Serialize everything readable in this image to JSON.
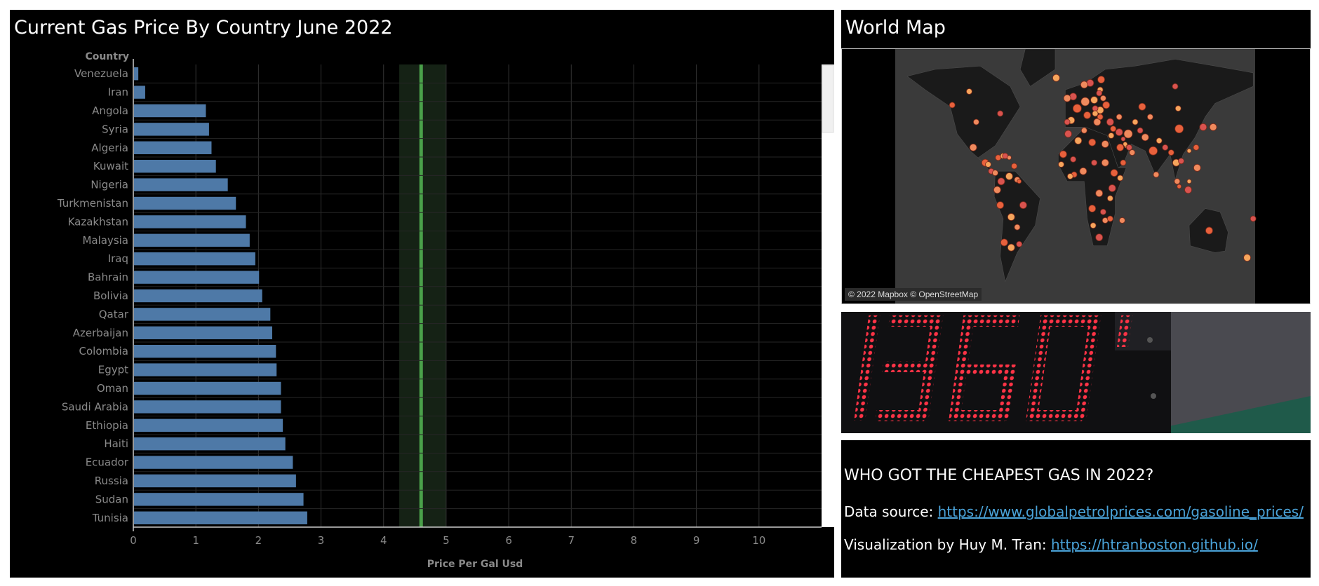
{
  "chart_panel": {
    "title": "Current Gas Price By Country June 2022"
  },
  "map_panel": {
    "title": "World Map",
    "attribution": "© 2022 Mapbox © OpenStreetMap"
  },
  "info_panel": {
    "heading": "WHO GOT THE CHEAPEST GAS IN 2022?",
    "source_label": "Data source:",
    "source_link": "https://www.globalpetrolprices.com/gasoline_prices/",
    "credit_label": "Visualization by Huy M. Tran:",
    "credit_link": "https://htranboston.github.io/"
  },
  "chart_data": {
    "type": "bar",
    "orientation": "horizontal",
    "title": "Current Gas Price By Country June 2022",
    "ylabel": "Country",
    "xlabel": "Price Per Gal Usd",
    "xlim": [
      0,
      11
    ],
    "xticks": [
      0,
      1,
      2,
      3,
      4,
      5,
      6,
      7,
      8,
      9,
      10
    ],
    "grid": true,
    "bar_color": "#4e79a7",
    "reference_line": {
      "value": 4.6,
      "band": [
        4.25,
        5.0
      ],
      "color": "#4aa04a"
    },
    "categories": [
      "Venezuela",
      "Iran",
      "Angola",
      "Syria",
      "Algeria",
      "Kuwait",
      "Nigeria",
      "Turkmenistan",
      "Kazakhstan",
      "Malaysia",
      "Iraq",
      "Bahrain",
      "Bolivia",
      "Qatar",
      "Azerbaijan",
      "Colombia",
      "Egypt",
      "Oman",
      "Saudi Arabia",
      "Ethiopia",
      "Haiti",
      "Ecuador",
      "Russia",
      "Sudan",
      "Tunisia"
    ],
    "values": [
      0.08,
      0.19,
      1.16,
      1.21,
      1.25,
      1.32,
      1.51,
      1.64,
      1.8,
      1.86,
      1.95,
      2.01,
      2.06,
      2.19,
      2.22,
      2.28,
      2.29,
      2.36,
      2.36,
      2.39,
      2.43,
      2.55,
      2.6,
      2.72,
      2.78
    ]
  },
  "map_points": [
    {
      "lon": -99,
      "lat": 39,
      "r": 4
    },
    {
      "lon": -123,
      "lat": 49,
      "r": 4
    },
    {
      "lon": -106,
      "lat": 57,
      "r": 4
    },
    {
      "lon": -75,
      "lat": 44,
      "r": 4
    },
    {
      "lon": -102,
      "lat": 24,
      "r": 5
    },
    {
      "lon": -90,
      "lat": 15,
      "r": 5
    },
    {
      "lon": -87,
      "lat": 14,
      "r": 4
    },
    {
      "lon": -84,
      "lat": 10,
      "r": 4
    },
    {
      "lon": -80,
      "lat": 9,
      "r": 4
    },
    {
      "lon": -77,
      "lat": 18,
      "r": 4
    },
    {
      "lon": -72,
      "lat": 19,
      "r": 4
    },
    {
      "lon": -70,
      "lat": 19,
      "r": 4
    },
    {
      "lon": -66,
      "lat": 18,
      "r": 3
    },
    {
      "lon": -61,
      "lat": 13,
      "r": 4
    },
    {
      "lon": -66,
      "lat": 7,
      "r": 5
    },
    {
      "lon": -74,
      "lat": 4,
      "r": 5
    },
    {
      "lon": -78,
      "lat": -1,
      "r": 5
    },
    {
      "lon": -75,
      "lat": -10,
      "r": 5
    },
    {
      "lon": -64,
      "lat": -17,
      "r": 5
    },
    {
      "lon": -52,
      "lat": -10,
      "r": 5
    },
    {
      "lon": -58,
      "lat": -23,
      "r": 4
    },
    {
      "lon": -71,
      "lat": -32,
      "r": 5
    },
    {
      "lon": -64,
      "lat": -35,
      "r": 5
    },
    {
      "lon": -56,
      "lat": -33,
      "r": 4
    },
    {
      "lon": -58,
      "lat": 5,
      "r": 4
    },
    {
      "lon": -56,
      "lat": 4,
      "r": 3
    },
    {
      "lon": -19,
      "lat": 65,
      "r": 5
    },
    {
      "lon": -2,
      "lat": 54,
      "r": 5
    },
    {
      "lon": -8,
      "lat": 53,
      "r": 5
    },
    {
      "lon": 2,
      "lat": 47,
      "r": 6
    },
    {
      "lon": -4,
      "lat": 40,
      "r": 5
    },
    {
      "lon": -8,
      "lat": 39,
      "r": 4
    },
    {
      "lon": 10,
      "lat": 51,
      "r": 6
    },
    {
      "lon": 12,
      "lat": 43,
      "r": 5
    },
    {
      "lon": 19,
      "lat": 52,
      "r": 5
    },
    {
      "lon": 15,
      "lat": 62,
      "r": 5
    },
    {
      "lon": 9,
      "lat": 61,
      "r": 5
    },
    {
      "lon": 26,
      "lat": 64,
      "r": 5
    },
    {
      "lon": 25,
      "lat": 58,
      "r": 4
    },
    {
      "lon": 24,
      "lat": 56,
      "r": 4
    },
    {
      "lon": 28,
      "lat": 53,
      "r": 4
    },
    {
      "lon": 31,
      "lat": 49,
      "r": 5
    },
    {
      "lon": 25,
      "lat": 46,
      "r": 5
    },
    {
      "lon": 20,
      "lat": 47,
      "r": 4
    },
    {
      "lon": 22,
      "lat": 39,
      "r": 5
    },
    {
      "lon": 25,
      "lat": 42,
      "r": 4
    },
    {
      "lon": 20,
      "lat": 44,
      "r": 4
    },
    {
      "lon": 35,
      "lat": 39,
      "r": 5
    },
    {
      "lon": 44,
      "lat": 42,
      "r": 4
    },
    {
      "lon": 38,
      "lat": 35,
      "r": 4
    },
    {
      "lon": 36,
      "lat": 31,
      "r": 4
    },
    {
      "lon": 44,
      "lat": 33,
      "r": 5
    },
    {
      "lon": 53,
      "lat": 32,
      "r": 6
    },
    {
      "lon": 45,
      "lat": 24,
      "r": 5
    },
    {
      "lon": 51,
      "lat": 25,
      "r": 3
    },
    {
      "lon": 54,
      "lat": 24,
      "r": 4
    },
    {
      "lon": 57,
      "lat": 21,
      "r": 4
    },
    {
      "lon": 48,
      "lat": 15,
      "r": 4
    },
    {
      "lon": 50,
      "lat": 26,
      "r": 3
    },
    {
      "lon": 48,
      "lat": 29,
      "r": 3
    },
    {
      "lon": 30,
      "lat": 26,
      "r": 5
    },
    {
      "lon": 17,
      "lat": 27,
      "r": 5
    },
    {
      "lon": 3,
      "lat": 28,
      "r": 5
    },
    {
      "lon": -7,
      "lat": 32,
      "r": 5
    },
    {
      "lon": 9,
      "lat": 34,
      "r": 4
    },
    {
      "lon": -12,
      "lat": 20,
      "r": 5
    },
    {
      "lon": -14,
      "lat": 14,
      "r": 4
    },
    {
      "lon": -2,
      "lat": 17,
      "r": 4
    },
    {
      "lon": 8,
      "lat": 10,
      "r": 5
    },
    {
      "lon": -1,
      "lat": 8,
      "r": 4
    },
    {
      "lon": -5,
      "lat": 7,
      "r": 4
    },
    {
      "lon": 19,
      "lat": 15,
      "r": 4
    },
    {
      "lon": 30,
      "lat": 15,
      "r": 5
    },
    {
      "lon": 39,
      "lat": 9,
      "r": 5
    },
    {
      "lon": 45,
      "lat": 6,
      "r": 4
    },
    {
      "lon": 37,
      "lat": 0,
      "r": 5
    },
    {
      "lon": 24,
      "lat": -3,
      "r": 5
    },
    {
      "lon": 17,
      "lat": -12,
      "r": 5
    },
    {
      "lon": 35,
      "lat": -6,
      "r": 4
    },
    {
      "lon": 28,
      "lat": -14,
      "r": 4
    },
    {
      "lon": 30,
      "lat": -19,
      "r": 4
    },
    {
      "lon": 35,
      "lat": -18,
      "r": 4
    },
    {
      "lon": 18,
      "lat": -22,
      "r": 4
    },
    {
      "lon": 24,
      "lat": -29,
      "r": 5
    },
    {
      "lon": 47,
      "lat": -19,
      "r": 4
    },
    {
      "lon": 67,
      "lat": 48,
      "r": 5
    },
    {
      "lon": 60,
      "lat": 39,
      "r": 4
    },
    {
      "lon": 65,
      "lat": 34,
      "r": 4
    },
    {
      "lon": 70,
      "lat": 30,
      "r": 5
    },
    {
      "lon": 78,
      "lat": 22,
      "r": 6
    },
    {
      "lon": 84,
      "lat": 28,
      "r": 4
    },
    {
      "lon": 90,
      "lat": 24,
      "r": 4
    },
    {
      "lon": 81,
      "lat": 8,
      "r": 4
    },
    {
      "lon": 96,
      "lat": 21,
      "r": 4
    },
    {
      "lon": 101,
      "lat": 15,
      "r": 5
    },
    {
      "lon": 106,
      "lat": 16,
      "r": 4
    },
    {
      "lon": 102,
      "lat": 4,
      "r": 4
    },
    {
      "lon": 104,
      "lat": 1,
      "r": 3
    },
    {
      "lon": 114,
      "lat": 4,
      "r": 3
    },
    {
      "lon": 113,
      "lat": -1,
      "r": 5
    },
    {
      "lon": 122,
      "lat": 12,
      "r": 5
    },
    {
      "lon": 104,
      "lat": 35,
      "r": 6
    },
    {
      "lon": 103,
      "lat": 47,
      "r": 4
    },
    {
      "lon": 128,
      "lat": 36,
      "r": 5
    },
    {
      "lon": 138,
      "lat": 36,
      "r": 5
    },
    {
      "lon": 121,
      "lat": 24,
      "r": 4
    },
    {
      "lon": 114,
      "lat": 22,
      "r": 3
    },
    {
      "lon": 100,
      "lat": 60,
      "r": 4
    },
    {
      "lon": 75,
      "lat": 42,
      "r": 4
    },
    {
      "lon": 134,
      "lat": -25,
      "r": 5
    },
    {
      "lon": 172,
      "lat": -41,
      "r": 5
    },
    {
      "lon": 178,
      "lat": -18,
      "r": 4
    }
  ]
}
